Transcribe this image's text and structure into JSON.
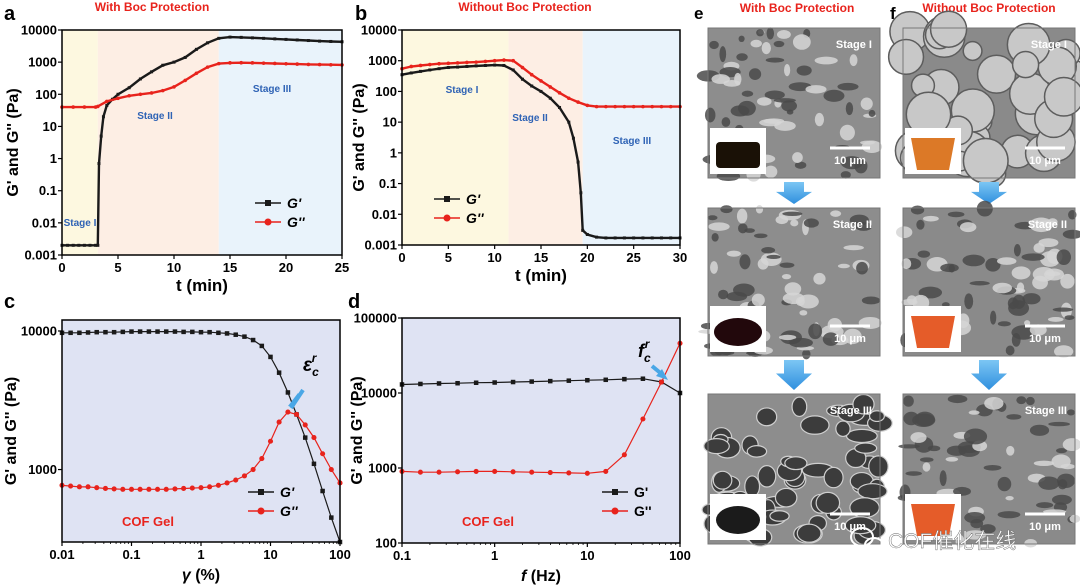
{
  "figure": {
    "panels": {
      "a": {
        "letter": "a",
        "title": "With Boc Protection"
      },
      "b": {
        "letter": "b",
        "title": "Without Boc Protection"
      },
      "c": {
        "letter": "c",
        "annotation": "COF Gel"
      },
      "d": {
        "letter": "d",
        "annotation": "COF Gel"
      },
      "e": {
        "letter": "e",
        "title": "With Boc Protection",
        "stages": [
          "Stage I",
          "Stage II",
          "Stage III"
        ],
        "scale_bar": "10 μm"
      },
      "f": {
        "letter": "f",
        "title": "Without Boc Protection",
        "stages": [
          "Stage I",
          "Stage II",
          "Stage III"
        ],
        "scale_bar": "10 μm"
      }
    },
    "watermark": "COF催化在线",
    "colors": {
      "black_series": "#1a1a1a",
      "red_series": "#e8231c",
      "title_red": "#e8231c",
      "stage_text": "#2f63b5",
      "arrow_blue": "#4aa7e6",
      "panel_bg": "#dfe3f3"
    }
  },
  "chart_data": [
    {
      "id": "a",
      "type": "line",
      "xlabel": "t (min)",
      "ylabel": "G' and G'' (Pa)",
      "xlim": [
        0,
        25
      ],
      "ylim": [
        0.001,
        10000
      ],
      "yscale": "log",
      "xticks": [
        "0",
        "5",
        "10",
        "15",
        "20",
        "25"
      ],
      "yticks": [
        "0.001",
        "0.01",
        "0.1",
        "1",
        "10",
        "100",
        "1000",
        "10000"
      ],
      "stages": [
        {
          "label": "Stage I",
          "from": 0,
          "to": 3.2,
          "color": "#fdf8e0"
        },
        {
          "label": "Stage II",
          "from": 3.2,
          "to": 14,
          "color": "#fdeee4"
        },
        {
          "label": "Stage III",
          "from": 14,
          "to": 25,
          "color": "#e9f3fb"
        }
      ],
      "legend": [
        "G'",
        "G''"
      ],
      "series": [
        {
          "name": "G'",
          "x": [
            0,
            0.5,
            1,
            1.5,
            2,
            2.5,
            3,
            3.2,
            3.3,
            3.5,
            3.7,
            4,
            4.5,
            5,
            6,
            7,
            8,
            9,
            10,
            11,
            12,
            13,
            14,
            15,
            16,
            17,
            18,
            19,
            20,
            21,
            22,
            23,
            24,
            25
          ],
          "y": [
            0.002,
            0.002,
            0.002,
            0.002,
            0.002,
            0.002,
            0.002,
            0.002,
            0.7,
            5,
            20,
            45,
            70,
            100,
            160,
            300,
            500,
            800,
            1000,
            1400,
            2500,
            4000,
            5500,
            6000,
            5900,
            5700,
            5500,
            5300,
            5100,
            4900,
            4700,
            4500,
            4400,
            4300
          ]
        },
        {
          "name": "G''",
          "x": [
            0,
            1,
            2,
            3,
            3.2,
            4,
            5,
            6,
            7,
            8,
            9,
            10,
            11,
            12,
            13,
            14,
            15,
            16,
            17,
            18,
            19,
            20,
            21,
            22,
            23,
            24,
            25
          ],
          "y": [
            40,
            40,
            40,
            40,
            42,
            60,
            75,
            90,
            100,
            110,
            130,
            170,
            270,
            450,
            700,
            900,
            950,
            960,
            950,
            930,
            910,
            890,
            870,
            850,
            840,
            830,
            820
          ]
        }
      ]
    },
    {
      "id": "b",
      "type": "line",
      "xlabel": "t (min)",
      "ylabel": "G' and G'' (Pa)",
      "xlim": [
        0,
        30
      ],
      "ylim": [
        0.001,
        10000
      ],
      "yscale": "log",
      "xticks": [
        "0",
        "5",
        "10",
        "15",
        "20",
        "25",
        "30"
      ],
      "yticks": [
        "0.001",
        "0.01",
        "0.1",
        "1",
        "10",
        "100",
        "1000",
        "10000"
      ],
      "stages": [
        {
          "label": "Stage I",
          "from": 0,
          "to": 11.5,
          "color": "#fdf8e0"
        },
        {
          "label": "Stage II",
          "from": 11.5,
          "to": 19.5,
          "color": "#fdeee4"
        },
        {
          "label": "Stage III",
          "from": 19.5,
          "to": 30,
          "color": "#e9f3fb"
        }
      ],
      "legend": [
        "G'",
        "G''"
      ],
      "series": [
        {
          "name": "G'",
          "x": [
            0,
            1,
            2,
            3,
            4,
            5,
            6,
            7,
            8,
            9,
            10,
            11,
            12,
            13,
            14,
            15,
            16,
            17,
            18,
            18.5,
            19,
            19.3,
            19.5,
            20,
            21,
            22,
            23,
            24,
            25,
            26,
            27,
            28,
            29,
            30
          ],
          "y": [
            350,
            400,
            450,
            500,
            550,
            600,
            620,
            650,
            680,
            700,
            720,
            700,
            500,
            250,
            150,
            100,
            60,
            30,
            10,
            3,
            0.5,
            0.05,
            0.003,
            0.0022,
            0.0018,
            0.0017,
            0.0017,
            0.0017,
            0.0017,
            0.0017,
            0.0017,
            0.0017,
            0.0017,
            0.0017
          ]
        },
        {
          "name": "G''",
          "x": [
            0,
            1,
            2,
            3,
            4,
            5,
            6,
            7,
            8,
            9,
            10,
            11,
            12,
            13,
            14,
            15,
            16,
            17,
            18,
            19,
            20,
            21,
            22,
            23,
            24,
            25,
            26,
            27,
            28,
            29,
            30
          ],
          "y": [
            550,
            650,
            700,
            750,
            800,
            820,
            850,
            880,
            900,
            950,
            1000,
            1050,
            1000,
            600,
            350,
            220,
            140,
            90,
            60,
            45,
            35,
            32,
            32,
            32,
            32,
            32,
            32,
            32,
            32,
            32,
            32
          ]
        }
      ]
    },
    {
      "id": "c",
      "type": "line",
      "xlabel": "γ (%)",
      "ylabel": "G' and G'' (Pa)",
      "xlim": [
        0.01,
        100
      ],
      "ylim": [
        300,
        12000
      ],
      "xscale": "log",
      "yscale": "log",
      "xticks": [
        "0.01",
        "0.1",
        "1",
        "10",
        "100"
      ],
      "yticks": [
        "1000",
        "10000"
      ],
      "annotation": "ε_c^r",
      "legend": [
        "G'",
        "G''"
      ],
      "series": [
        {
          "name": "G'",
          "x": [
            0.01,
            0.0133,
            0.0178,
            0.0237,
            0.0316,
            0.0422,
            0.0562,
            0.075,
            0.1,
            0.133,
            0.178,
            0.237,
            0.316,
            0.422,
            0.562,
            0.75,
            1,
            1.33,
            1.78,
            2.37,
            3.16,
            4.22,
            5.62,
            7.5,
            10,
            13.3,
            17.8,
            23.7,
            31.6,
            42.2,
            56.2,
            75,
            100
          ],
          "y": [
            9700,
            9700,
            9700,
            9750,
            9800,
            9800,
            9800,
            9850,
            9900,
            9900,
            9900,
            9900,
            9900,
            9900,
            9850,
            9850,
            9800,
            9800,
            9700,
            9600,
            9400,
            9100,
            8600,
            7800,
            6500,
            5000,
            3600,
            2500,
            1700,
            1100,
            700,
            450,
            300
          ]
        },
        {
          "name": "G''",
          "x": [
            0.01,
            0.0133,
            0.0178,
            0.0237,
            0.0316,
            0.0422,
            0.0562,
            0.075,
            0.1,
            0.133,
            0.178,
            0.237,
            0.316,
            0.422,
            0.562,
            0.75,
            1,
            1.33,
            1.78,
            2.37,
            3.16,
            4.22,
            5.62,
            7.5,
            10,
            13.3,
            17.8,
            23.7,
            31.6,
            42.2,
            56.2,
            75,
            100
          ],
          "y": [
            770,
            760,
            750,
            750,
            740,
            730,
            725,
            720,
            720,
            720,
            720,
            720,
            720,
            725,
            730,
            735,
            740,
            750,
            770,
            800,
            840,
            900,
            1000,
            1200,
            1600,
            2200,
            2600,
            2500,
            2100,
            1700,
            1300,
            1000,
            800
          ]
        }
      ]
    },
    {
      "id": "d",
      "type": "line",
      "xlabel": "f (Hz)",
      "ylabel": "G' and G'' (Pa)",
      "xlim": [
        0.1,
        100
      ],
      "ylim": [
        100,
        100000
      ],
      "xscale": "log",
      "yscale": "log",
      "xticks": [
        "0.1",
        "1",
        "10",
        "100"
      ],
      "yticks": [
        "100",
        "1000",
        "10000",
        "100000"
      ],
      "annotation": "f_c^r",
      "legend": [
        "G'",
        "G''"
      ],
      "series": [
        {
          "name": "G'",
          "x": [
            0.1,
            0.158,
            0.251,
            0.398,
            0.631,
            1,
            1.58,
            2.51,
            3.98,
            6.31,
            10,
            15.8,
            25.1,
            39.8,
            63.1,
            100
          ],
          "y": [
            13000,
            13200,
            13400,
            13500,
            13700,
            13800,
            14000,
            14200,
            14400,
            14600,
            14800,
            15000,
            15300,
            15500,
            14000,
            10000
          ]
        },
        {
          "name": "G''",
          "x": [
            0.1,
            0.158,
            0.251,
            0.398,
            0.631,
            1,
            1.58,
            2.51,
            3.98,
            6.31,
            10,
            15.8,
            25.1,
            39.8,
            63.1,
            100
          ],
          "y": [
            900,
            880,
            880,
            890,
            900,
            900,
            890,
            880,
            870,
            860,
            850,
            900,
            1500,
            4500,
            14000,
            46000
          ]
        }
      ]
    }
  ]
}
